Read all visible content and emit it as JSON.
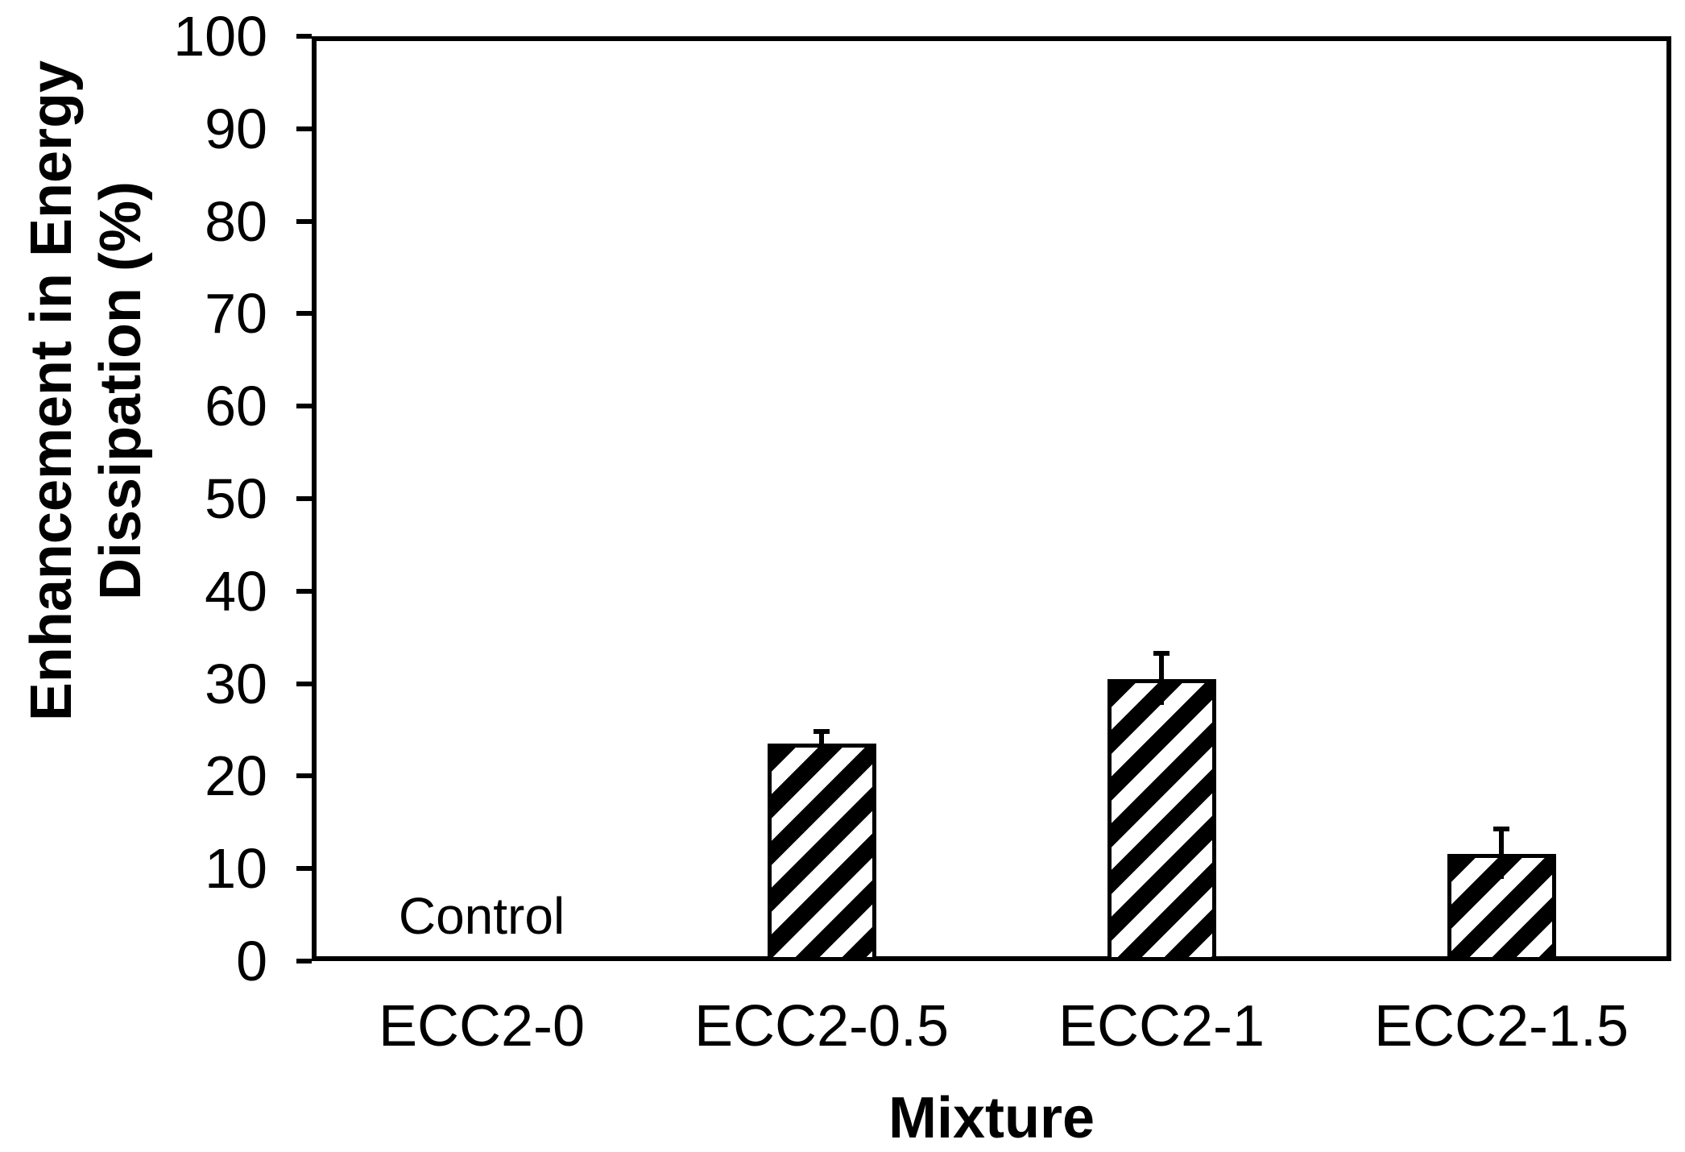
{
  "chart_data": {
    "type": "bar",
    "title": "",
    "xlabel": "Mixture",
    "ylabel": "Enhancement in Energy Dissipation (%)",
    "ylabel_lines": [
      "Enhancement in Energy",
      "Dissipation (%)"
    ],
    "categories": [
      "ECC2-0",
      "ECC2-0.5",
      "ECC2-1",
      "ECC2-1.5"
    ],
    "values": [
      0.2,
      23.5,
      30.5,
      11.6
    ],
    "errors": [
      0,
      1.3,
      2.8,
      2.7
    ],
    "annotations": [
      {
        "text": "Control",
        "category_index": 0
      }
    ],
    "ylim": [
      0,
      100
    ],
    "yticks": [
      0,
      10,
      20,
      30,
      40,
      50,
      60,
      70,
      80,
      90,
      100
    ],
    "grid": false,
    "legend": null,
    "bar_fill_color": "#ffffff",
    "hatch_style": "forward-diagonal",
    "hatch_color": "#000000",
    "edge_color": "#000000",
    "background_color": "#ffffff"
  }
}
